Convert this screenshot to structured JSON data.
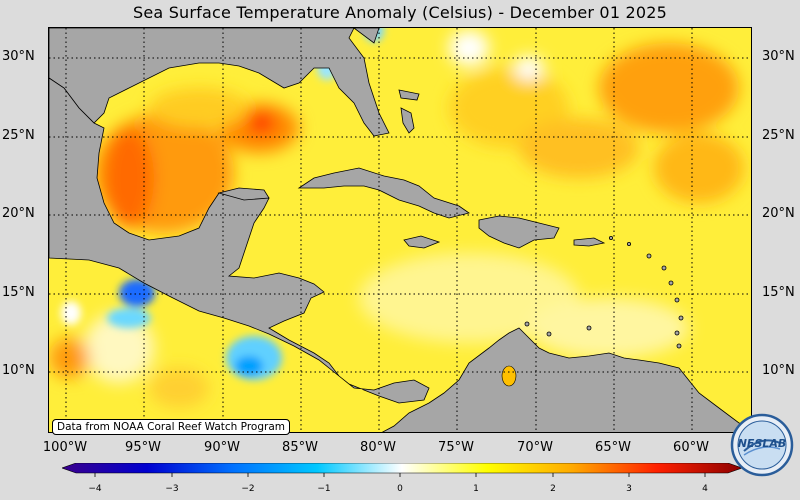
{
  "title": "Sea Surface Temperature Anomaly (Celsius) - December 01 2025",
  "lat_labels": [
    "30°N",
    "25°N",
    "20°N",
    "15°N",
    "10°N"
  ],
  "lon_labels": [
    "100°W",
    "95°W",
    "90°W",
    "85°W",
    "80°W",
    "75°W",
    "70°W",
    "65°W",
    "60°W"
  ],
  "attribution": "Data from NOAA Coral Reef Watch Program",
  "colorbar": {
    "ticks": [
      "−4",
      "−3",
      "−2",
      "−1",
      "0",
      "1",
      "2",
      "3",
      "4"
    ],
    "colors": [
      "#3a008c",
      "#0000d0",
      "#0070ff",
      "#00c8ff",
      "#ffffff",
      "#ffff00",
      "#ffaa00",
      "#ff2000",
      "#8c0000"
    ]
  },
  "logo": {
    "text": "NESLAB"
  },
  "colors": {
    "land": "#a6a6a6",
    "ocean_base": "#ffee40",
    "background": "#dcdcdc"
  }
}
